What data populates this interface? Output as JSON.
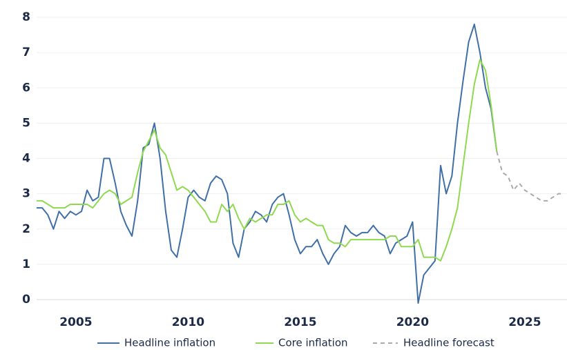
{
  "chart_data": {
    "type": "line",
    "x": [
      2003.25,
      2003.5,
      2003.75,
      2004,
      2004.25,
      2004.5,
      2004.75,
      2005,
      2005.25,
      2005.5,
      2005.75,
      2006,
      2006.25,
      2006.5,
      2006.75,
      2007,
      2007.25,
      2007.5,
      2007.75,
      2008,
      2008.25,
      2008.5,
      2008.75,
      2009,
      2009.25,
      2009.5,
      2009.75,
      2010,
      2010.25,
      2010.5,
      2010.75,
      2011,
      2011.25,
      2011.5,
      2011.75,
      2012,
      2012.25,
      2012.5,
      2012.75,
      2013,
      2013.25,
      2013.5,
      2013.75,
      2014,
      2014.25,
      2014.5,
      2014.75,
      2015,
      2015.25,
      2015.5,
      2015.75,
      2016,
      2016.25,
      2016.5,
      2016.75,
      2017,
      2017.25,
      2017.5,
      2017.75,
      2018,
      2018.25,
      2018.5,
      2018.75,
      2019,
      2019.25,
      2019.5,
      2019.75,
      2020,
      2020.25,
      2020.5,
      2020.75,
      2021,
      2021.25,
      2021.5,
      2021.75,
      2022,
      2022.25,
      2022.5,
      2022.75,
      2023,
      2023.25,
      2023.5,
      2023.75
    ],
    "series": [
      {
        "name": "Headline inflation",
        "color": "#3f6fa6",
        "values": [
          2.6,
          2.6,
          2.4,
          2.0,
          2.5,
          2.3,
          2.5,
          2.4,
          2.5,
          3.1,
          2.8,
          2.9,
          4.0,
          4.0,
          3.3,
          2.5,
          2.1,
          1.8,
          2.8,
          4.3,
          4.4,
          5.0,
          4.0,
          2.5,
          1.4,
          1.2,
          2.0,
          2.9,
          3.1,
          2.9,
          2.8,
          3.3,
          3.5,
          3.4,
          3.0,
          1.6,
          1.2,
          2.0,
          2.2,
          2.5,
          2.4,
          2.2,
          2.7,
          2.9,
          3.0,
          2.4,
          1.7,
          1.3,
          1.5,
          1.5,
          1.7,
          1.3,
          1.0,
          1.3,
          1.5,
          2.1,
          1.9,
          1.8,
          1.9,
          1.9,
          2.1,
          1.9,
          1.8,
          1.3,
          1.6,
          1.7,
          1.8,
          2.2,
          -0.1,
          0.7,
          0.9,
          1.1,
          3.8,
          3.0,
          3.5,
          5.0,
          6.2,
          7.3,
          7.8,
          7.0,
          6.0,
          5.4,
          4.2
        ]
      },
      {
        "name": "Core inflation",
        "color": "#8fd94f",
        "values": [
          2.8,
          2.8,
          2.7,
          2.6,
          2.6,
          2.6,
          2.7,
          2.7,
          2.7,
          2.7,
          2.6,
          2.8,
          3.0,
          3.1,
          3.0,
          2.7,
          2.8,
          2.9,
          3.6,
          4.2,
          4.5,
          4.8,
          4.3,
          4.1,
          3.6,
          3.1,
          3.2,
          3.1,
          2.9,
          2.7,
          2.5,
          2.2,
          2.2,
          2.7,
          2.5,
          2.7,
          2.3,
          2.0,
          2.3,
          2.2,
          2.3,
          2.4,
          2.4,
          2.7,
          2.7,
          2.8,
          2.4,
          2.2,
          2.3,
          2.2,
          2.1,
          2.1,
          1.7,
          1.6,
          1.6,
          1.5,
          1.7,
          1.7,
          1.7,
          1.7,
          1.7,
          1.7,
          1.7,
          1.8,
          1.8,
          1.5,
          1.5,
          1.5,
          1.7,
          1.2,
          1.2,
          1.2,
          1.1,
          1.5,
          2.0,
          2.6,
          3.8,
          5.0,
          6.1,
          6.8,
          6.5,
          5.5,
          4.2
        ]
      },
      {
        "name": "Headline forecast",
        "color": "#aaaaaa",
        "dashed": true,
        "x": [
          2023.75,
          2024,
          2024.25,
          2024.5,
          2024.75,
          2025,
          2025.25,
          2025.5,
          2025.75,
          2026,
          2026.25,
          2026.5,
          2026.75
        ],
        "values": [
          4.2,
          3.6,
          3.5,
          3.1,
          3.3,
          3.1,
          3.0,
          2.9,
          2.8,
          2.8,
          2.9,
          3.0,
          3.0
        ]
      }
    ],
    "xlim": [
      2003.25,
      2026.88
    ],
    "xticks": [
      2005,
      2010,
      2015,
      2020,
      2025
    ],
    "ylim": [
      0,
      8
    ],
    "yticks": [
      0,
      1,
      2,
      3,
      4,
      5,
      6,
      7,
      8
    ],
    "grid": true
  }
}
